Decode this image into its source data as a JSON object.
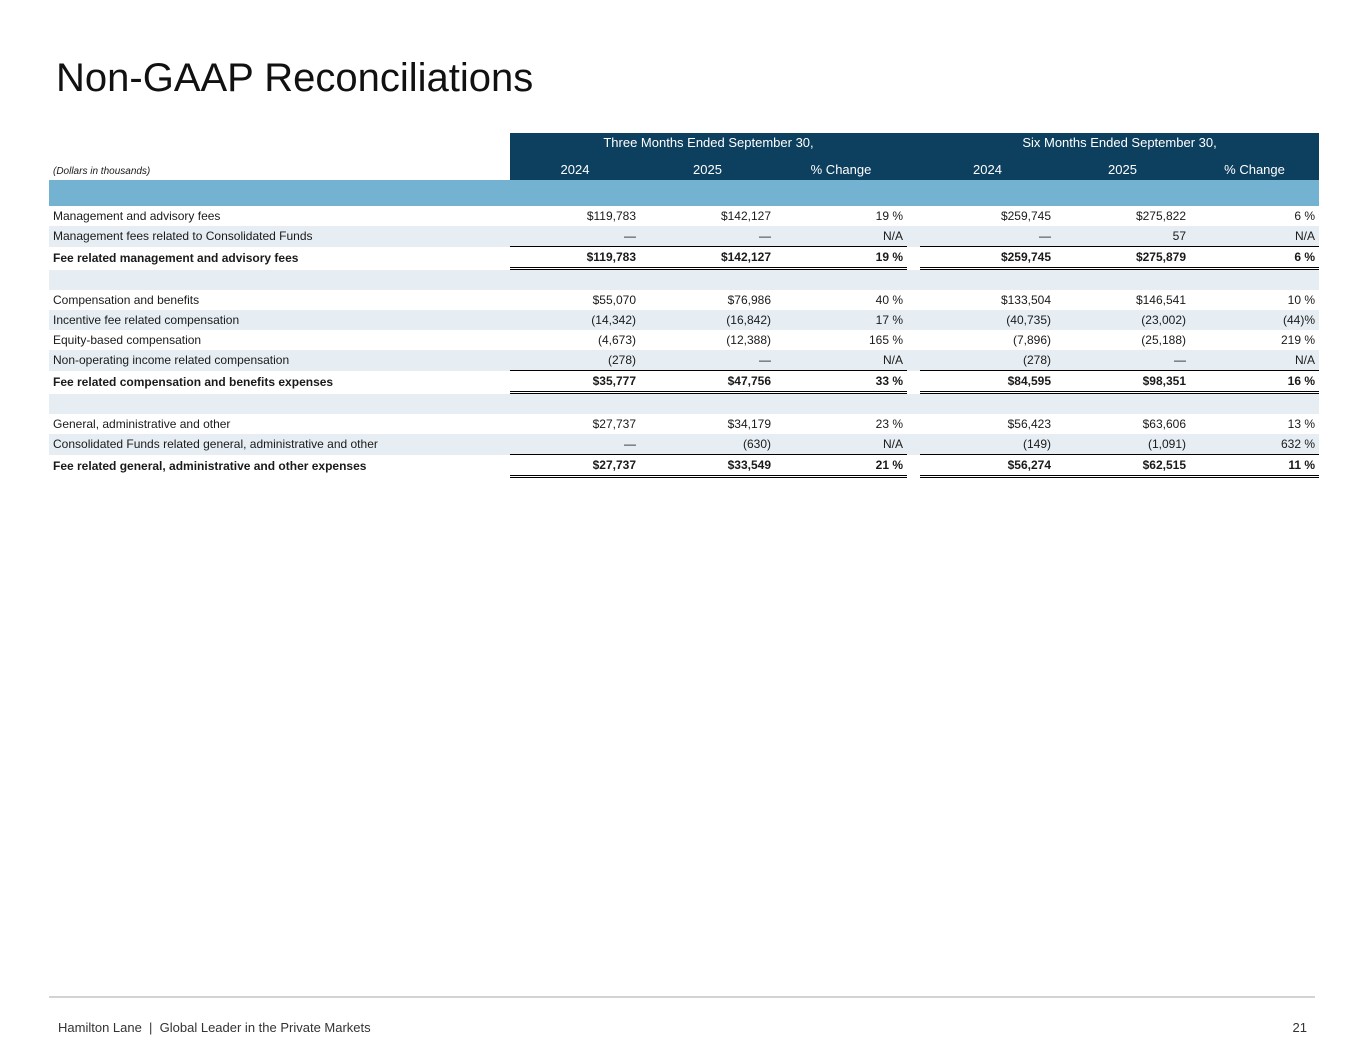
{
  "title": "Non-GAAP Reconciliations",
  "table": {
    "period_headers": [
      "Three Months Ended September 30,",
      "Six Months Ended September 30,"
    ],
    "units_note": "(Dollars in thousands)",
    "column_headers": [
      "2024",
      "2025",
      "% Change",
      "2024",
      "2025",
      "% Change"
    ],
    "rows": [
      {
        "label": "Management and advisory fees",
        "cells": [
          "$119,783",
          "$142,127",
          "19 %",
          "$259,745",
          "$275,822",
          "6 %"
        ]
      },
      {
        "label": "Management fees related to Consolidated Funds",
        "cells": [
          "—",
          "—",
          "N/A",
          "—",
          "57",
          "N/A"
        ]
      },
      {
        "label": "Fee related management and advisory fees",
        "cells": [
          "$119,783",
          "$142,127",
          "19 %",
          "$259,745",
          "$275,879",
          "6 %"
        ]
      },
      {
        "label": "Compensation and benefits",
        "cells": [
          "$55,070",
          "$76,986",
          "40 %",
          "$133,504",
          "$146,541",
          "10 %"
        ]
      },
      {
        "label": "Incentive fee related compensation",
        "cells": [
          "(14,342)",
          "(16,842)",
          "17 %",
          "(40,735)",
          "(23,002)",
          "(44)%"
        ]
      },
      {
        "label": "Equity-based compensation",
        "cells": [
          "(4,673)",
          "(12,388)",
          "165 %",
          "(7,896)",
          "(25,188)",
          "219 %"
        ]
      },
      {
        "label": "Non-operating income related compensation",
        "cells": [
          "(278)",
          "—",
          "N/A",
          "(278)",
          "—",
          "N/A"
        ]
      },
      {
        "label": "Fee related compensation and benefits expenses",
        "cells": [
          "$35,777",
          "$47,756",
          "33 %",
          "$84,595",
          "$98,351",
          "16 %"
        ]
      },
      {
        "label": "General, administrative and other",
        "cells": [
          "$27,737",
          "$34,179",
          "23 %",
          "$56,423",
          "$63,606",
          "13 %"
        ]
      },
      {
        "label": "Consolidated Funds related general, administrative and other",
        "cells": [
          "—",
          "(630)",
          "N/A",
          "(149)",
          "(1,091)",
          "632 %"
        ]
      },
      {
        "label": "Fee related general, administrative and other expenses",
        "cells": [
          "$27,737",
          "$33,549",
          "21 %",
          "$56,274",
          "$62,515",
          "11 %"
        ]
      }
    ]
  },
  "footer": {
    "text": "Hamilton Lane  |  Global Leader in the Private Markets",
    "page": "21"
  }
}
